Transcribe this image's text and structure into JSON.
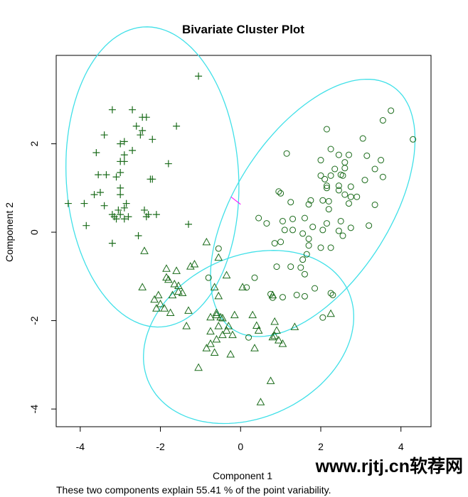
{
  "chart_data": {
    "type": "scatter",
    "title": "Bivariate Cluster Plot",
    "xlabel": "Component 1",
    "ylabel": "Component 2",
    "subtitle": "These two components explain 55.41 % of the point variability.",
    "xlim": [
      -4.6,
      4.75
    ],
    "ylim": [
      -4.4,
      4.0
    ],
    "x_ticks": [
      -4,
      -2,
      0,
      2,
      4
    ],
    "y_ticks": [
      -4,
      -2,
      0,
      2
    ],
    "grid": false,
    "legend": "none",
    "colors": {
      "points": "#1a6b1a",
      "ellipse": "#40e0e8",
      "connector": "#ff00ff"
    },
    "ellipses": [
      {
        "cluster": 1,
        "center": [
          -2.2,
          1.25
        ],
        "rx": 2.15,
        "ry": 3.4,
        "angle_deg": 4
      },
      {
        "cluster": 2,
        "center": [
          1.8,
          0.55
        ],
        "rx": 1.85,
        "ry": 3.4,
        "angle_deg": -38
      },
      {
        "cluster": 3,
        "center": [
          0.2,
          -2.37
        ],
        "rx": 2.7,
        "ry": 1.85,
        "angle_deg": 19
      }
    ],
    "connectors": [
      {
        "from": [
          -0.24,
          0.8
        ],
        "to": [
          0.0,
          0.63
        ]
      }
    ],
    "series": [
      {
        "cluster": 1,
        "marker": "plus",
        "points": [
          [
            -1.05,
            3.53
          ],
          [
            -3.2,
            2.77
          ],
          [
            -2.7,
            2.77
          ],
          [
            -2.45,
            2.6
          ],
          [
            -2.35,
            2.6
          ],
          [
            -1.6,
            2.4
          ],
          [
            -2.6,
            2.4
          ],
          [
            -2.45,
            2.3
          ],
          [
            -2.5,
            2.2
          ],
          [
            -3.4,
            2.2
          ],
          [
            -2.9,
            2.05
          ],
          [
            -2.2,
            2.1
          ],
          [
            -3.0,
            2.0
          ],
          [
            -2.7,
            1.85
          ],
          [
            -2.9,
            1.75
          ],
          [
            -3.6,
            1.8
          ],
          [
            -3.0,
            1.6
          ],
          [
            -2.9,
            1.6
          ],
          [
            -1.8,
            1.55
          ],
          [
            -3.0,
            1.35
          ],
          [
            -3.35,
            1.3
          ],
          [
            -3.55,
            1.3
          ],
          [
            -3.1,
            1.25
          ],
          [
            -2.25,
            1.2
          ],
          [
            -2.2,
            1.2
          ],
          [
            -3.0,
            1.0
          ],
          [
            -3.5,
            0.9
          ],
          [
            -3.65,
            0.85
          ],
          [
            -3.0,
            0.85
          ],
          [
            -4.3,
            0.65
          ],
          [
            -3.9,
            0.65
          ],
          [
            -2.85,
            0.65
          ],
          [
            -3.4,
            0.6
          ],
          [
            -2.9,
            0.55
          ],
          [
            -3.05,
            0.5
          ],
          [
            -2.4,
            0.5
          ],
          [
            -3.2,
            0.4
          ],
          [
            -3.0,
            0.4
          ],
          [
            -2.3,
            0.4
          ],
          [
            -2.1,
            0.4
          ],
          [
            -3.15,
            0.35
          ],
          [
            -2.35,
            0.35
          ],
          [
            -2.8,
            0.35
          ],
          [
            -3.1,
            0.3
          ],
          [
            -2.9,
            0.3
          ],
          [
            -1.3,
            0.18
          ],
          [
            -3.85,
            0.15
          ],
          [
            -2.55,
            -0.08
          ],
          [
            -3.2,
            -0.25
          ]
        ]
      },
      {
        "cluster": 2,
        "marker": "circle",
        "points": [
          [
            3.75,
            2.75
          ],
          [
            4.3,
            2.1
          ],
          [
            3.55,
            2.53
          ],
          [
            2.15,
            2.33
          ],
          [
            3.05,
            2.12
          ],
          [
            2.25,
            1.88
          ],
          [
            2.0,
            1.63
          ],
          [
            2.45,
            1.75
          ],
          [
            2.7,
            1.75
          ],
          [
            1.15,
            1.78
          ],
          [
            3.15,
            1.73
          ],
          [
            2.6,
            1.58
          ],
          [
            3.5,
            1.63
          ],
          [
            2.35,
            1.43
          ],
          [
            2.6,
            1.45
          ],
          [
            3.35,
            1.43
          ],
          [
            2.5,
            1.3
          ],
          [
            2.25,
            1.28
          ],
          [
            2.55,
            1.28
          ],
          [
            3.55,
            1.25
          ],
          [
            2.0,
            1.28
          ],
          [
            2.1,
            1.2
          ],
          [
            3.1,
            1.18
          ],
          [
            2.75,
            1.03
          ],
          [
            2.15,
            1.05
          ],
          [
            2.15,
            1.0
          ],
          [
            2.45,
            1.05
          ],
          [
            2.45,
            0.95
          ],
          [
            0.95,
            0.92
          ],
          [
            1.0,
            0.88
          ],
          [
            2.6,
            0.85
          ],
          [
            2.75,
            0.8
          ],
          [
            2.9,
            0.8
          ],
          [
            1.75,
            0.72
          ],
          [
            2.05,
            0.72
          ],
          [
            1.25,
            0.68
          ],
          [
            2.2,
            0.7
          ],
          [
            2.7,
            0.65
          ],
          [
            3.35,
            0.62
          ],
          [
            2.2,
            0.52
          ],
          [
            1.7,
            0.63
          ],
          [
            0.45,
            0.32
          ],
          [
            1.6,
            0.32
          ],
          [
            0.65,
            0.2
          ],
          [
            1.05,
            0.25
          ],
          [
            1.3,
            0.3
          ],
          [
            2.5,
            0.25
          ],
          [
            2.15,
            0.2
          ],
          [
            3.2,
            0.15
          ],
          [
            1.8,
            0.12
          ],
          [
            2.75,
            0.1
          ],
          [
            1.1,
            0.05
          ],
          [
            1.3,
            0.05
          ],
          [
            2.05,
            0.05
          ],
          [
            2.45,
            0.03
          ],
          [
            1.55,
            -0.03
          ],
          [
            1.7,
            -0.15
          ],
          [
            1.0,
            -0.22
          ],
          [
            2.55,
            -0.08
          ],
          [
            0.85,
            -0.25
          ],
          [
            1.7,
            -0.3
          ],
          [
            2.25,
            -0.35
          ],
          [
            2.0,
            -0.35
          ],
          [
            1.65,
            -0.5
          ],
          [
            1.55,
            -0.62
          ],
          [
            0.9,
            -0.78
          ],
          [
            1.25,
            -0.78
          ],
          [
            1.5,
            -0.8
          ],
          [
            1.6,
            -0.95
          ],
          [
            1.85,
            -1.27
          ],
          [
            2.25,
            -1.38
          ],
          [
            2.3,
            -1.42
          ],
          [
            1.4,
            -1.42
          ],
          [
            1.6,
            -1.45
          ],
          [
            0.75,
            -1.4
          ],
          [
            0.8,
            -1.48
          ],
          [
            1.05,
            -1.47
          ],
          [
            0.35,
            -1.03
          ],
          [
            0.15,
            -1.25
          ],
          [
            -0.55,
            -0.37
          ],
          [
            -0.8,
            -1.03
          ],
          [
            0.2,
            -2.38
          ],
          [
            2.05,
            -1.93
          ]
        ]
      },
      {
        "cluster": 3,
        "marker": "triangle",
        "points": [
          [
            -2.4,
            -0.43
          ],
          [
            -0.85,
            -0.23
          ],
          [
            -0.55,
            -0.58
          ],
          [
            -1.15,
            -0.73
          ],
          [
            -1.25,
            -0.78
          ],
          [
            -1.85,
            -0.83
          ],
          [
            -1.6,
            -0.88
          ],
          [
            -1.85,
            -1.03
          ],
          [
            -0.35,
            -0.98
          ],
          [
            -1.8,
            -1.08
          ],
          [
            -1.65,
            -1.18
          ],
          [
            -1.55,
            -1.22
          ],
          [
            -1.55,
            -1.35
          ],
          [
            -1.45,
            -1.38
          ],
          [
            -1.7,
            -1.43
          ],
          [
            -0.65,
            -1.25
          ],
          [
            0.05,
            -1.25
          ],
          [
            -0.55,
            -1.45
          ],
          [
            0.8,
            -1.43
          ],
          [
            -2.45,
            -1.25
          ],
          [
            -2.05,
            -1.43
          ],
          [
            -2.0,
            -1.63
          ],
          [
            -1.9,
            -1.73
          ],
          [
            -2.1,
            -1.73
          ],
          [
            -2.15,
            -1.53
          ],
          [
            -1.3,
            -1.78
          ],
          [
            -1.75,
            -1.83
          ],
          [
            -0.6,
            -1.83
          ],
          [
            -0.6,
            -1.88
          ],
          [
            -0.5,
            -1.93
          ],
          [
            -0.45,
            -1.95
          ],
          [
            -0.75,
            -1.93
          ],
          [
            -0.15,
            -1.88
          ],
          [
            0.3,
            -1.88
          ],
          [
            0.85,
            -2.03
          ],
          [
            -0.3,
            -2.13
          ],
          [
            -0.55,
            -2.13
          ],
          [
            0.4,
            -2.12
          ],
          [
            -1.35,
            -2.13
          ],
          [
            0.45,
            -2.23
          ],
          [
            -0.75,
            -2.25
          ],
          [
            0.9,
            -2.23
          ],
          [
            1.35,
            -2.15
          ],
          [
            -0.35,
            -2.23
          ],
          [
            -0.45,
            -2.33
          ],
          [
            -0.6,
            -2.43
          ],
          [
            -0.2,
            -2.33
          ],
          [
            0.85,
            -2.35
          ],
          [
            0.8,
            -2.38
          ],
          [
            0.95,
            -2.45
          ],
          [
            -0.75,
            -2.53
          ],
          [
            -0.85,
            -2.63
          ],
          [
            0.35,
            -2.63
          ],
          [
            1.05,
            -2.53
          ],
          [
            -0.65,
            -2.73
          ],
          [
            -0.25,
            -2.77
          ],
          [
            -1.05,
            -3.07
          ],
          [
            0.75,
            -3.37
          ],
          [
            0.5,
            -3.85
          ],
          [
            2.25,
            -1.85
          ]
        ]
      }
    ]
  },
  "watermark": "www.rjtj.cn软荐网"
}
